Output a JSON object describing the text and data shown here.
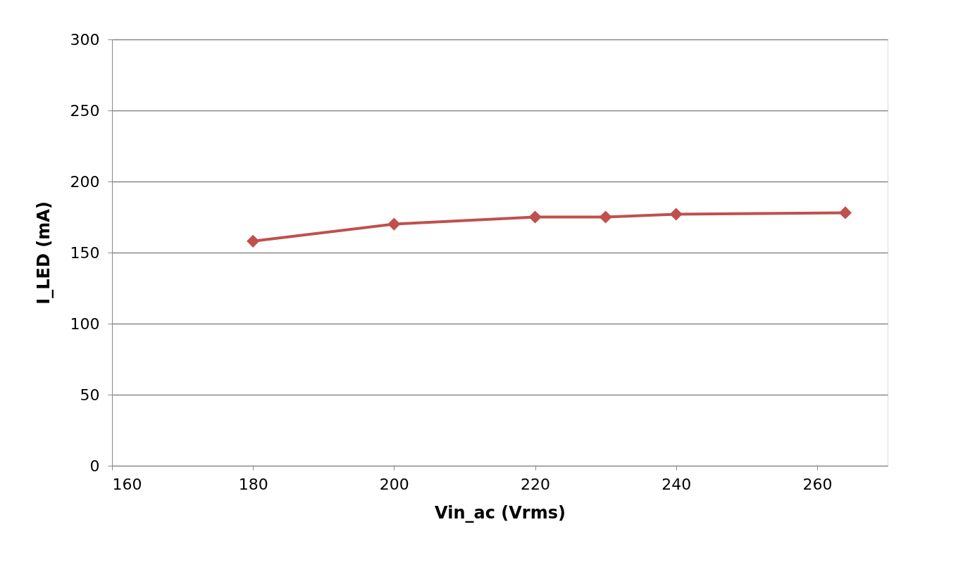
{
  "chart_data": {
    "type": "line",
    "xlabel": "Vin_ac (Vrms)",
    "ylabel": "I_LED (mA)",
    "x": [
      180,
      200,
      220,
      230,
      240,
      264
    ],
    "series": [
      {
        "color": "#c0504d",
        "values": [
          158,
          170,
          175,
          175,
          177,
          178
        ]
      }
    ],
    "xlim": [
      160,
      270
    ],
    "xticks": [
      160,
      180,
      200,
      220,
      240,
      260
    ],
    "ylim": [
      0,
      300
    ],
    "yticks": [
      0,
      50,
      100,
      150,
      200,
      250,
      300
    ],
    "grid": "y",
    "marker": "diamond",
    "line_style": "solid"
  }
}
